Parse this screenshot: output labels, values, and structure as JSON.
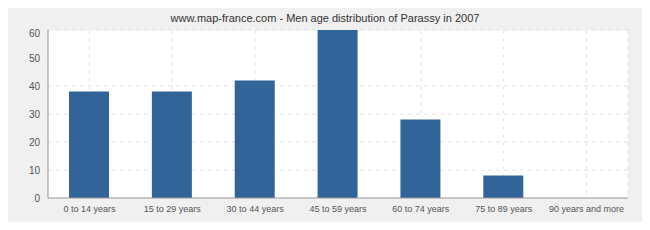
{
  "chart_data": {
    "type": "bar",
    "title": "www.map-france.com - Men age distribution of Parassy in 2007",
    "categories": [
      "0 to 14 years",
      "15 to 29 years",
      "30 to 44 years",
      "45 to 59 years",
      "60 to 74 years",
      "75 to 89 years",
      "90 years and more"
    ],
    "values": [
      38,
      38,
      42,
      60,
      28,
      8,
      0
    ],
    "color": "#31659a",
    "ylim": [
      0,
      60
    ],
    "yticks": [
      0,
      10,
      20,
      30,
      40,
      50,
      60
    ],
    "grid": true
  }
}
